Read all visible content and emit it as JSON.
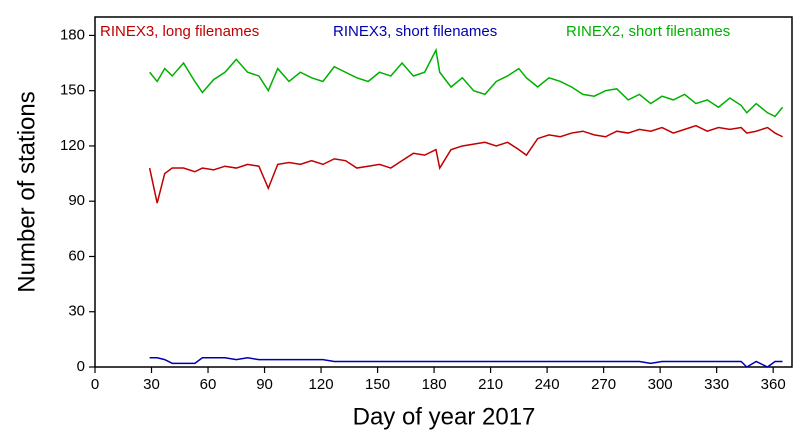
{
  "chart_data": {
    "type": "line",
    "x_label": "Day of year 2017",
    "y_label": "Number of stations",
    "x": [
      29,
      33,
      37,
      41,
      47,
      53,
      57,
      63,
      69,
      75,
      81,
      87,
      92,
      97,
      103,
      109,
      115,
      121,
      127,
      133,
      139,
      145,
      151,
      157,
      163,
      169,
      175,
      181,
      183,
      189,
      195,
      201,
      207,
      213,
      219,
      225,
      229,
      235,
      241,
      247,
      253,
      259,
      265,
      271,
      277,
      283,
      289,
      295,
      301,
      307,
      313,
      319,
      325,
      331,
      337,
      343,
      346,
      351,
      357,
      361,
      365
    ],
    "series": [
      {
        "name": "RINEX3, long filenames",
        "color": "#c00000",
        "values": [
          108,
          89,
          105,
          108,
          108,
          106,
          108,
          107,
          109,
          108,
          110,
          109,
          97,
          110,
          111,
          110,
          112,
          110,
          113,
          112,
          108,
          109,
          110,
          108,
          112,
          116,
          115,
          118,
          108,
          118,
          120,
          121,
          122,
          120,
          122,
          118,
          115,
          124,
          126,
          125,
          127,
          128,
          126,
          125,
          128,
          127,
          129,
          128,
          130,
          127,
          129,
          131,
          128,
          130,
          129,
          130,
          127,
          128,
          130,
          127,
          125
        ]
      },
      {
        "name": "RINEX3, short filenames",
        "color": "#0000b0",
        "values": [
          5,
          5,
          4,
          2,
          2,
          2,
          5,
          5,
          5,
          4,
          5,
          4,
          4,
          4,
          4,
          4,
          4,
          4,
          3,
          3,
          3,
          3,
          3,
          3,
          3,
          3,
          3,
          3,
          3,
          3,
          3,
          3,
          3,
          3,
          3,
          3,
          3,
          3,
          3,
          3,
          3,
          3,
          3,
          3,
          3,
          3,
          3,
          2,
          3,
          3,
          3,
          3,
          3,
          3,
          3,
          3,
          0,
          3,
          0,
          3,
          3
        ]
      },
      {
        "name": "RINEX2, short filenames",
        "color": "#00b000",
        "values": [
          160,
          155,
          162,
          158,
          165,
          155,
          149,
          156,
          160,
          167,
          160,
          158,
          150,
          162,
          155,
          160,
          157,
          155,
          163,
          160,
          157,
          155,
          160,
          158,
          165,
          158,
          160,
          172,
          160,
          152,
          157,
          150,
          148,
          155,
          158,
          162,
          157,
          152,
          157,
          155,
          152,
          148,
          147,
          150,
          151,
          145,
          148,
          143,
          147,
          145,
          148,
          143,
          145,
          141,
          146,
          142,
          138,
          143,
          138,
          136,
          141
        ]
      }
    ],
    "xlim": [
      0,
      370
    ],
    "xticks": [
      0,
      30,
      60,
      90,
      120,
      150,
      180,
      210,
      240,
      270,
      300,
      330,
      360
    ],
    "ylim": [
      0,
      190
    ],
    "yticks": [
      0,
      30,
      60,
      90,
      120,
      150,
      180
    ]
  }
}
